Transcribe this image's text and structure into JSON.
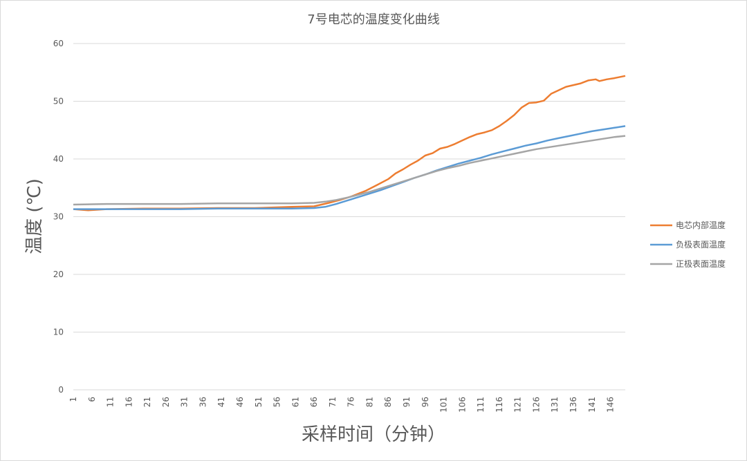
{
  "chart_data": {
    "type": "line",
    "title": "7号电芯的温度变化曲线",
    "xlabel": "采样时间（分钟）",
    "ylabel": "温度 (℃)",
    "ylim": [
      0,
      60
    ],
    "yticks": [
      0,
      10,
      20,
      30,
      40,
      50,
      60
    ],
    "x_range": [
      1,
      150
    ],
    "xtick_labels": [
      "1",
      "6",
      "11",
      "16",
      "21",
      "26",
      "31",
      "36",
      "41",
      "46",
      "51",
      "56",
      "61",
      "66",
      "71",
      "76",
      "81",
      "86",
      "91",
      "96",
      "101",
      "106",
      "111",
      "116",
      "121",
      "126",
      "131",
      "136",
      "141",
      "146"
    ],
    "grid": true,
    "legend_position": "right",
    "series": [
      {
        "name": "电芯内部温度",
        "color": "#ED7D31",
        "points": [
          [
            1,
            31.3
          ],
          [
            5,
            31.1
          ],
          [
            10,
            31.3
          ],
          [
            20,
            31.4
          ],
          [
            30,
            31.4
          ],
          [
            40,
            31.5
          ],
          [
            50,
            31.5
          ],
          [
            60,
            31.7
          ],
          [
            66,
            31.8
          ],
          [
            70,
            32.4
          ],
          [
            73,
            32.9
          ],
          [
            76,
            33.5
          ],
          [
            80,
            34.5
          ],
          [
            83,
            35.5
          ],
          [
            86,
            36.5
          ],
          [
            88,
            37.5
          ],
          [
            90,
            38.2
          ],
          [
            92,
            39.0
          ],
          [
            94,
            39.7
          ],
          [
            96,
            40.6
          ],
          [
            98,
            41.0
          ],
          [
            100,
            41.8
          ],
          [
            102,
            42.1
          ],
          [
            104,
            42.6
          ],
          [
            106,
            43.2
          ],
          [
            108,
            43.8
          ],
          [
            110,
            44.3
          ],
          [
            112,
            44.6
          ],
          [
            114,
            45.0
          ],
          [
            116,
            45.7
          ],
          [
            118,
            46.6
          ],
          [
            120,
            47.6
          ],
          [
            122,
            48.9
          ],
          [
            124,
            49.7
          ],
          [
            126,
            49.8
          ],
          [
            128,
            50.1
          ],
          [
            130,
            51.3
          ],
          [
            132,
            51.9
          ],
          [
            134,
            52.5
          ],
          [
            136,
            52.8
          ],
          [
            138,
            53.1
          ],
          [
            140,
            53.6
          ],
          [
            142,
            53.8
          ],
          [
            143,
            53.5
          ],
          [
            145,
            53.8
          ],
          [
            147,
            54.0
          ],
          [
            150,
            54.4
          ]
        ]
      },
      {
        "name": "负极表面温度",
        "color": "#5B9BD5",
        "points": [
          [
            1,
            31.3
          ],
          [
            10,
            31.3
          ],
          [
            20,
            31.3
          ],
          [
            30,
            31.3
          ],
          [
            40,
            31.4
          ],
          [
            50,
            31.4
          ],
          [
            60,
            31.4
          ],
          [
            66,
            31.5
          ],
          [
            69,
            31.7
          ],
          [
            72,
            32.2
          ],
          [
            75,
            32.8
          ],
          [
            78,
            33.4
          ],
          [
            81,
            34.0
          ],
          [
            84,
            34.6
          ],
          [
            87,
            35.3
          ],
          [
            90,
            36.0
          ],
          [
            93,
            36.7
          ],
          [
            96,
            37.3
          ],
          [
            99,
            38.0
          ],
          [
            102,
            38.6
          ],
          [
            105,
            39.2
          ],
          [
            108,
            39.7
          ],
          [
            111,
            40.2
          ],
          [
            114,
            40.8
          ],
          [
            117,
            41.3
          ],
          [
            120,
            41.8
          ],
          [
            123,
            42.3
          ],
          [
            126,
            42.7
          ],
          [
            129,
            43.2
          ],
          [
            132,
            43.6
          ],
          [
            135,
            44.0
          ],
          [
            138,
            44.4
          ],
          [
            141,
            44.8
          ],
          [
            144,
            45.1
          ],
          [
            147,
            45.4
          ],
          [
            150,
            45.7
          ]
        ]
      },
      {
        "name": "正极表面温度",
        "color": "#A5A5A5",
        "points": [
          [
            1,
            32.1
          ],
          [
            10,
            32.2
          ],
          [
            20,
            32.2
          ],
          [
            30,
            32.2
          ],
          [
            40,
            32.3
          ],
          [
            50,
            32.3
          ],
          [
            60,
            32.3
          ],
          [
            66,
            32.4
          ],
          [
            69,
            32.6
          ],
          [
            72,
            32.9
          ],
          [
            75,
            33.3
          ],
          [
            78,
            33.8
          ],
          [
            81,
            34.3
          ],
          [
            84,
            34.9
          ],
          [
            87,
            35.5
          ],
          [
            90,
            36.1
          ],
          [
            93,
            36.7
          ],
          [
            96,
            37.3
          ],
          [
            99,
            37.9
          ],
          [
            102,
            38.4
          ],
          [
            105,
            38.8
          ],
          [
            108,
            39.3
          ],
          [
            111,
            39.7
          ],
          [
            114,
            40.1
          ],
          [
            117,
            40.5
          ],
          [
            120,
            40.9
          ],
          [
            123,
            41.3
          ],
          [
            126,
            41.7
          ],
          [
            129,
            42.0
          ],
          [
            132,
            42.3
          ],
          [
            135,
            42.6
          ],
          [
            138,
            42.9
          ],
          [
            141,
            43.2
          ],
          [
            144,
            43.5
          ],
          [
            147,
            43.8
          ],
          [
            150,
            44.0
          ]
        ]
      }
    ]
  }
}
